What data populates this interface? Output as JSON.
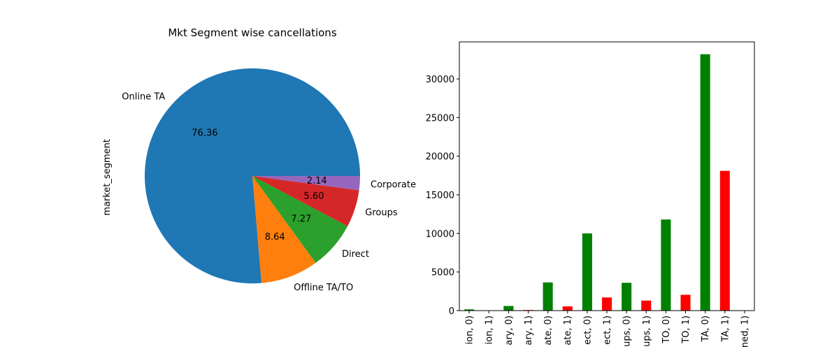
{
  "chart_data": [
    {
      "type": "pie",
      "title": "Mkt Segment wise cancellations",
      "ylabel": "market_segment",
      "slices": [
        {
          "label": "Online TA",
          "value": 76.36,
          "pct_label": "76.36",
          "color": "#1f77b4"
        },
        {
          "label": "Offline TA/TO",
          "value": 8.64,
          "pct_label": "8.64",
          "color": "#ff7f0e"
        },
        {
          "label": "Direct",
          "value": 7.27,
          "pct_label": "7.27",
          "color": "#2ca02c"
        },
        {
          "label": "Groups",
          "value": 5.6,
          "pct_label": "5.60",
          "color": "#d62728"
        },
        {
          "label": "Corporate",
          "value": 2.14,
          "pct_label": "2.14",
          "color": "#9467bd"
        }
      ]
    },
    {
      "type": "bar",
      "ylim": [
        0,
        34800
      ],
      "yticks": [
        0,
        5000,
        10000,
        15000,
        20000,
        25000,
        30000
      ],
      "categories": [
        "ion, 0)",
        "ion, 1)",
        "ary, 0)",
        "ary, 1)",
        "ate, 0)",
        "ate, 1)",
        "ect, 0)",
        "ect, 1)",
        "ups, 0)",
        "ups, 1)",
        "TO, 0)",
        "TO, 1)",
        "TA, 0)",
        "TA, 1)",
        "ned, 1)"
      ],
      "values": [
        160,
        0,
        600,
        80,
        3650,
        550,
        10000,
        1700,
        3600,
        1300,
        11800,
        2050,
        33200,
        18100,
        0
      ],
      "colors": [
        "#008000",
        "#ff0000",
        "#008000",
        "#ff0000",
        "#008000",
        "#ff0000",
        "#008000",
        "#ff0000",
        "#008000",
        "#ff0000",
        "#008000",
        "#ff0000",
        "#008000",
        "#ff0000",
        "#ff0000"
      ]
    }
  ]
}
